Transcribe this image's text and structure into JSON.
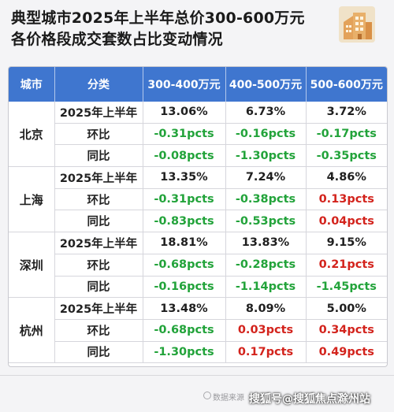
{
  "title_line1": "典型城市2025年上半年总价300-600万元",
  "title_line2": "各价格段成交套数占比变动情况",
  "logo_icon": "building-icon",
  "headers": [
    "城市",
    "分类",
    "300-400万元",
    "400-500万元",
    "500-600万元"
  ],
  "rows": [
    {
      "city": "北京",
      "items": [
        {
          "label": "2025年上半年",
          "v": [
            "13.06%",
            "6.73%",
            "3.72%"
          ],
          "c": [
            "black",
            "black",
            "black"
          ]
        },
        {
          "label": "环比",
          "v": [
            "-0.31pcts",
            "-0.16pcts",
            "-0.17pcts"
          ],
          "c": [
            "green",
            "green",
            "green"
          ]
        },
        {
          "label": "同比",
          "v": [
            "-0.08pcts",
            "-1.30pcts",
            "-0.35pcts"
          ],
          "c": [
            "green",
            "green",
            "green"
          ]
        }
      ]
    },
    {
      "city": "上海",
      "items": [
        {
          "label": "2025年上半年",
          "v": [
            "13.35%",
            "7.24%",
            "4.86%"
          ],
          "c": [
            "black",
            "black",
            "black"
          ]
        },
        {
          "label": "环比",
          "v": [
            "-0.31pcts",
            "-0.38pcts",
            "0.13pcts"
          ],
          "c": [
            "green",
            "green",
            "red"
          ]
        },
        {
          "label": "同比",
          "v": [
            "-0.83pcts",
            "-0.53pcts",
            "0.04pcts"
          ],
          "c": [
            "green",
            "green",
            "red"
          ]
        }
      ]
    },
    {
      "city": "深圳",
      "items": [
        {
          "label": "2025年上半年",
          "v": [
            "18.81%",
            "13.83%",
            "9.15%"
          ],
          "c": [
            "black",
            "black",
            "black"
          ]
        },
        {
          "label": "环比",
          "v": [
            "-0.68pcts",
            "-0.28pcts",
            "0.21pcts"
          ],
          "c": [
            "green",
            "green",
            "red"
          ]
        },
        {
          "label": "同比",
          "v": [
            "-0.16pcts",
            "-1.14pcts",
            "-1.45pcts"
          ],
          "c": [
            "green",
            "green",
            "green"
          ]
        }
      ]
    },
    {
      "city": "杭州",
      "items": [
        {
          "label": "2025年上半年",
          "v": [
            "13.48%",
            "8.09%",
            "5.00%"
          ],
          "c": [
            "black",
            "black",
            "black"
          ]
        },
        {
          "label": "环比",
          "v": [
            "-0.68pcts",
            "0.03pcts",
            "0.34pcts"
          ],
          "c": [
            "green",
            "red",
            "red"
          ]
        },
        {
          "label": "同比",
          "v": [
            "-1.30pcts",
            "0.17pcts",
            "0.49pcts"
          ],
          "c": [
            "green",
            "red",
            "red"
          ]
        }
      ]
    }
  ],
  "colors": {
    "header_bg": "#3f76cf",
    "positive": "#d3231c",
    "negative": "#22a33a"
  },
  "source_text": "数据来源",
  "watermark_text": "搜狐号@搜狐焦点滁州站"
}
